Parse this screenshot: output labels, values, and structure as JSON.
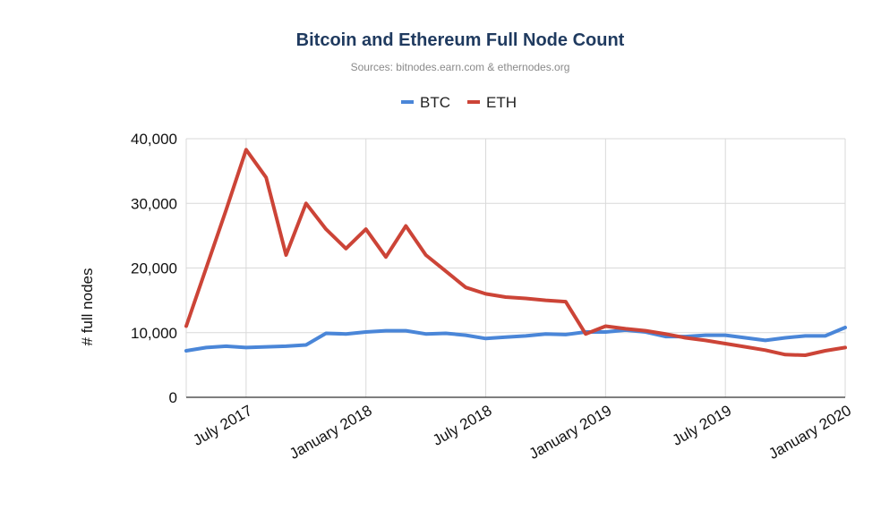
{
  "chart_data": {
    "type": "line",
    "title": "Bitcoin and Ethereum Full Node Count",
    "subtitle": "Sources: bitnodes.earn.com & ethernodes.org",
    "xlabel": "",
    "ylabel": "# full nodes",
    "ylim": [
      0,
      40000
    ],
    "yticks": [
      0,
      10000,
      20000,
      30000,
      40000
    ],
    "ytick_labels": [
      "0",
      "10,000",
      "20,000",
      "30,000",
      "40,000"
    ],
    "xlim": [
      "2017-04",
      "2020-01"
    ],
    "xticks": [
      "2017-07",
      "2018-01",
      "2018-07",
      "2019-01",
      "2019-07",
      "2020-01"
    ],
    "xtick_labels": [
      "July 2017",
      "January 2018",
      "July 2018",
      "January 2019",
      "July 2019",
      "January 2020"
    ],
    "grid": true,
    "legend": "top",
    "series": [
      {
        "name": "BTC",
        "color": "#4a86d8",
        "x": [
          "2017-04",
          "2017-05",
          "2017-06",
          "2017-07",
          "2017-08",
          "2017-09",
          "2017-10",
          "2017-11",
          "2017-12",
          "2018-01",
          "2018-02",
          "2018-03",
          "2018-04",
          "2018-05",
          "2018-06",
          "2018-07",
          "2018-08",
          "2018-09",
          "2018-10",
          "2018-11",
          "2018-12",
          "2019-01",
          "2019-02",
          "2019-03",
          "2019-04",
          "2019-05",
          "2019-06",
          "2019-07",
          "2019-08",
          "2019-09",
          "2019-10",
          "2019-11",
          "2019-12",
          "2020-01"
        ],
        "values": [
          7200,
          7700,
          7900,
          7700,
          7800,
          7900,
          8100,
          9900,
          9800,
          10100,
          10300,
          10300,
          9800,
          9900,
          9600,
          9100,
          9300,
          9500,
          9800,
          9700,
          10100,
          10100,
          10400,
          10100,
          9400,
          9400,
          9600,
          9600,
          9200,
          8800,
          9200,
          9500,
          9500,
          10800
        ]
      },
      {
        "name": "ETH",
        "color": "#cc4437",
        "x": [
          "2017-04",
          "2017-05",
          "2017-06",
          "2017-07",
          "2017-08",
          "2017-09",
          "2017-10",
          "2017-11",
          "2017-12",
          "2018-01",
          "2018-02",
          "2018-03",
          "2018-04",
          "2018-05",
          "2018-06",
          "2018-07",
          "2018-08",
          "2018-09",
          "2018-10",
          "2018-11",
          "2018-12",
          "2019-01",
          "2019-02",
          "2019-03",
          "2019-04",
          "2019-05",
          "2019-06",
          "2019-07",
          "2019-08",
          "2019-09",
          "2019-10",
          "2019-11",
          "2019-12",
          "2020-01"
        ],
        "values": [
          11000,
          20000,
          29000,
          38300,
          34000,
          22000,
          30000,
          26000,
          23000,
          26000,
          21700,
          26500,
          22000,
          19500,
          17000,
          16000,
          15500,
          15300,
          15000,
          14800,
          9800,
          11000,
          10600,
          10300,
          9800,
          9200,
          8800,
          8300,
          7800,
          7300,
          6600,
          6500,
          7200,
          7700
        ]
      }
    ]
  }
}
